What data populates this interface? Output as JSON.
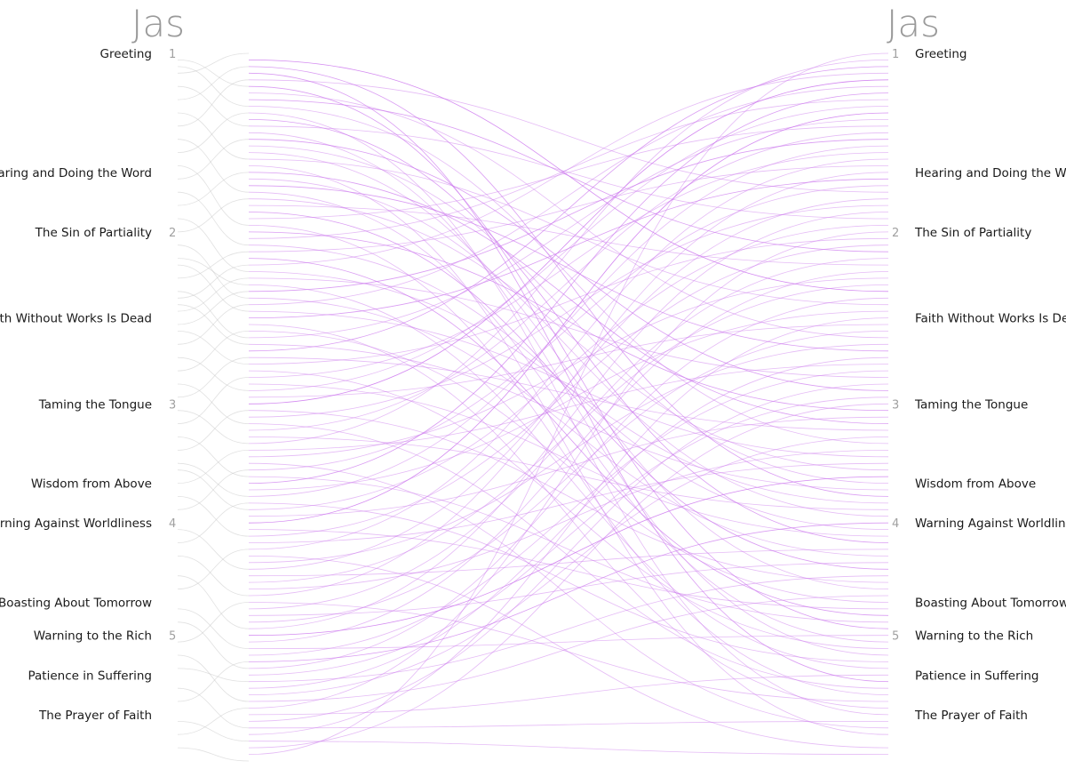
{
  "left_book": {
    "title": "Jas"
  },
  "right_book": {
    "title": "Jas"
  },
  "sections": [
    {
      "label": "Greeting",
      "verse": 1
    },
    {
      "label": "Hearing and Doing the Word",
      "verse": 19
    },
    {
      "label": "The Sin of Partiality",
      "verse": 28
    },
    {
      "label": "Faith Without Works Is Dead",
      "verse": 41
    },
    {
      "label": "Taming the Tongue",
      "verse": 54
    },
    {
      "label": "Wisdom from Above",
      "verse": 66
    },
    {
      "label": "Warning Against Worldliness",
      "verse": 72
    },
    {
      "label": "Boasting About Tomorrow",
      "verse": 84
    },
    {
      "label": "Warning to the Rich",
      "verse": 89
    },
    {
      "label": "Patience in Suffering",
      "verse": 95
    },
    {
      "label": "The Prayer of Faith",
      "verse": 101
    }
  ],
  "chapters": [
    {
      "label": "1",
      "verse": 1
    },
    {
      "label": "2",
      "verse": 28
    },
    {
      "label": "3",
      "verse": 54
    },
    {
      "label": "4",
      "verse": 72
    },
    {
      "label": "5",
      "verse": 89
    }
  ],
  "total_verses": 108,
  "colors": {
    "cross_link": "#cc77ee",
    "self_link": "#c8c8c8",
    "title": "#9a9a9a"
  },
  "cross_links": [
    [
      2,
      37,
      3
    ],
    [
      3,
      68,
      2
    ],
    [
      4,
      96,
      2
    ],
    [
      5,
      22,
      1
    ],
    [
      6,
      88,
      2
    ],
    [
      7,
      44,
      1
    ],
    [
      8,
      31,
      2
    ],
    [
      9,
      60,
      1
    ],
    [
      10,
      101,
      1
    ],
    [
      11,
      75,
      2
    ],
    [
      12,
      26,
      1
    ],
    [
      13,
      92,
      1
    ],
    [
      14,
      52,
      2
    ],
    [
      15,
      66,
      1
    ],
    [
      16,
      82,
      1
    ],
    [
      17,
      39,
      1
    ],
    [
      18,
      104,
      1
    ],
    [
      19,
      57,
      2
    ],
    [
      20,
      71,
      1
    ],
    [
      21,
      46,
      2
    ],
    [
      22,
      90,
      1
    ],
    [
      23,
      64,
      1
    ],
    [
      24,
      33,
      1
    ],
    [
      25,
      79,
      2
    ],
    [
      26,
      12,
      1
    ],
    [
      27,
      98,
      1
    ],
    [
      28,
      55,
      2
    ],
    [
      29,
      8,
      1
    ],
    [
      30,
      73,
      1
    ],
    [
      31,
      18,
      1
    ],
    [
      32,
      86,
      2
    ],
    [
      33,
      4,
      1
    ],
    [
      34,
      69,
      1
    ],
    [
      35,
      50,
      1
    ],
    [
      36,
      94,
      1
    ],
    [
      37,
      14,
      2
    ],
    [
      38,
      77,
      1
    ],
    [
      39,
      6,
      1
    ],
    [
      40,
      62,
      1
    ],
    [
      41,
      20,
      2
    ],
    [
      42,
      100,
      1
    ],
    [
      43,
      84,
      1
    ],
    [
      44,
      11,
      1
    ],
    [
      45,
      67,
      1
    ],
    [
      46,
      3,
      2
    ],
    [
      47,
      58,
      1
    ],
    [
      48,
      29,
      1
    ],
    [
      49,
      91,
      1
    ],
    [
      50,
      16,
      1
    ],
    [
      51,
      74,
      1
    ],
    [
      52,
      9,
      1
    ],
    [
      53,
      42,
      1
    ],
    [
      54,
      5,
      3
    ],
    [
      55,
      81,
      1
    ],
    [
      56,
      24,
      1
    ],
    [
      57,
      97,
      1
    ],
    [
      58,
      13,
      1
    ],
    [
      59,
      70,
      1
    ],
    [
      60,
      2,
      1
    ],
    [
      61,
      48,
      1
    ],
    [
      62,
      35,
      1
    ],
    [
      63,
      103,
      1
    ],
    [
      64,
      21,
      1
    ],
    [
      65,
      87,
      1
    ],
    [
      66,
      7,
      2
    ],
    [
      67,
      40,
      1
    ],
    [
      68,
      15,
      1
    ],
    [
      69,
      93,
      1
    ],
    [
      70,
      27,
      1
    ],
    [
      71,
      56,
      1
    ],
    [
      72,
      10,
      3
    ],
    [
      73,
      85,
      1
    ],
    [
      74,
      30,
      1
    ],
    [
      75,
      63,
      1
    ],
    [
      76,
      17,
      1
    ],
    [
      77,
      106,
      1
    ],
    [
      78,
      45,
      1
    ],
    [
      79,
      23,
      1
    ],
    [
      80,
      76,
      1
    ],
    [
      81,
      36,
      1
    ],
    [
      82,
      61,
      1
    ],
    [
      83,
      19,
      1
    ],
    [
      84,
      99,
      1
    ],
    [
      85,
      32,
      1
    ],
    [
      86,
      78,
      1
    ],
    [
      87,
      43,
      1
    ],
    [
      88,
      25,
      1
    ],
    [
      89,
      65,
      3
    ],
    [
      90,
      34,
      1
    ],
    [
      91,
      89,
      1
    ],
    [
      92,
      49,
      1
    ],
    [
      93,
      72,
      2
    ],
    [
      94,
      38,
      1
    ],
    [
      95,
      53,
      1
    ],
    [
      96,
      80,
      1
    ],
    [
      97,
      47,
      1
    ],
    [
      98,
      59,
      1
    ],
    [
      99,
      83,
      1
    ],
    [
      100,
      28,
      1
    ],
    [
      101,
      95,
      1
    ],
    [
      102,
      51,
      1
    ],
    [
      103,
      102,
      1
    ],
    [
      104,
      41,
      1
    ],
    [
      105,
      107,
      1
    ],
    [
      106,
      54,
      1
    ],
    [
      107,
      1,
      1
    ]
  ],
  "self_links": [
    [
      2,
      6
    ],
    [
      3,
      9
    ],
    [
      4,
      1
    ],
    [
      6,
      12
    ],
    [
      8,
      3
    ],
    [
      10,
      17
    ],
    [
      12,
      5
    ],
    [
      14,
      22
    ],
    [
      16,
      10
    ],
    [
      18,
      27
    ],
    [
      20,
      14
    ],
    [
      22,
      30
    ],
    [
      24,
      19
    ],
    [
      26,
      34
    ],
    [
      28,
      23
    ],
    [
      30,
      38
    ],
    [
      32,
      36
    ],
    [
      33,
      40
    ],
    [
      35,
      31
    ],
    [
      37,
      44
    ],
    [
      38,
      33
    ],
    [
      39,
      45
    ],
    [
      40,
      35
    ],
    [
      42,
      37
    ],
    [
      43,
      48
    ],
    [
      45,
      39
    ],
    [
      47,
      52
    ],
    [
      49,
      43
    ],
    [
      51,
      57
    ],
    [
      53,
      47
    ],
    [
      55,
      60
    ],
    [
      57,
      50
    ],
    [
      59,
      65
    ],
    [
      61,
      55
    ],
    [
      63,
      68
    ],
    [
      64,
      70
    ],
    [
      66,
      61
    ],
    [
      68,
      74
    ],
    [
      70,
      64
    ],
    [
      73,
      79
    ],
    [
      75,
      69
    ],
    [
      77,
      83
    ],
    [
      80,
      88
    ],
    [
      82,
      76
    ],
    [
      85,
      91
    ],
    [
      87,
      94
    ],
    [
      90,
      84
    ],
    [
      92,
      99
    ],
    [
      94,
      96
    ],
    [
      97,
      103
    ],
    [
      99,
      93
    ],
    [
      102,
      105
    ],
    [
      104,
      100
    ],
    [
      106,
      108
    ]
  ]
}
